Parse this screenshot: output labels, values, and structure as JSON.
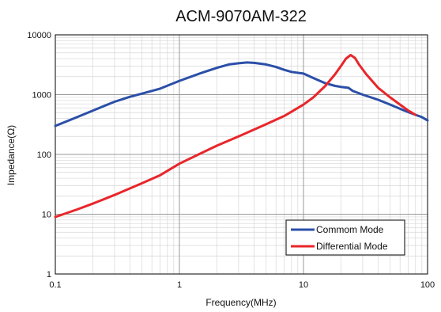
{
  "chart_data": {
    "type": "line",
    "title": "ACM-9070AM-322",
    "xlabel": "Frequency(MHz)",
    "ylabel": "Impedance(Ω)",
    "xscale": "log",
    "yscale": "log",
    "xlim": [
      0.1,
      100
    ],
    "ylim": [
      1,
      10000
    ],
    "x_ticks": [
      "0.1",
      "1",
      "10",
      "100"
    ],
    "y_ticks": [
      "1",
      "10",
      "100",
      "1000",
      "10000"
    ],
    "grid": true,
    "legend_position": "bottom-right",
    "series": [
      {
        "name": "Commom Mode",
        "color": "#2b4fa8",
        "points": [
          [
            0.1,
            300
          ],
          [
            0.15,
            420
          ],
          [
            0.2,
            540
          ],
          [
            0.3,
            760
          ],
          [
            0.4,
            920
          ],
          [
            0.5,
            1040
          ],
          [
            0.7,
            1260
          ],
          [
            1,
            1700
          ],
          [
            1.5,
            2300
          ],
          [
            2,
            2800
          ],
          [
            2.5,
            3200
          ],
          [
            3,
            3350
          ],
          [
            3.5,
            3450
          ],
          [
            4,
            3400
          ],
          [
            5,
            3200
          ],
          [
            6,
            2900
          ],
          [
            7,
            2600
          ],
          [
            8,
            2400
          ],
          [
            10,
            2250
          ],
          [
            12,
            1900
          ],
          [
            15,
            1550
          ],
          [
            18,
            1400
          ],
          [
            20,
            1350
          ],
          [
            23,
            1300
          ],
          [
            25,
            1150
          ],
          [
            30,
            1000
          ],
          [
            40,
            820
          ],
          [
            50,
            680
          ],
          [
            60,
            580
          ],
          [
            70,
            510
          ],
          [
            80,
            460
          ],
          [
            90,
            420
          ],
          [
            100,
            370
          ]
        ]
      },
      {
        "name": "Differential Mode",
        "color": "#e8262a",
        "points": [
          [
            0.1,
            9
          ],
          [
            0.15,
            12
          ],
          [
            0.2,
            15
          ],
          [
            0.3,
            21
          ],
          [
            0.5,
            33
          ],
          [
            0.7,
            45
          ],
          [
            1,
            70
          ],
          [
            1.5,
            105
          ],
          [
            2,
            140
          ],
          [
            3,
            200
          ],
          [
            5,
            320
          ],
          [
            7,
            440
          ],
          [
            10,
            680
          ],
          [
            12,
            900
          ],
          [
            15,
            1400
          ],
          [
            18,
            2200
          ],
          [
            20,
            3000
          ],
          [
            22,
            4000
          ],
          [
            24,
            4600
          ],
          [
            26,
            4100
          ],
          [
            28,
            3200
          ],
          [
            32,
            2200
          ],
          [
            40,
            1300
          ],
          [
            50,
            900
          ],
          [
            60,
            680
          ],
          [
            70,
            540
          ],
          [
            80,
            460
          ]
        ]
      }
    ]
  }
}
